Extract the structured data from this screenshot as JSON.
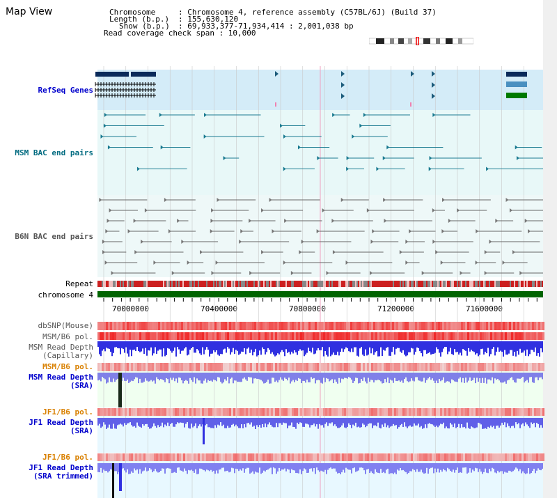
{
  "page": {
    "title": "Map View"
  },
  "header": {
    "chromosome_key": "Chromosome",
    "chromosome_val": ": Chromosome 4, reference assembly (C57BL/6J) (Build 37)",
    "length_key": "Length (b.p.)",
    "length_val": ": 155,630,120",
    "show_key": "Show (b.p.)",
    "show_val": ": 69,933,377-71,934,414 : 2,001,038 bp",
    "coverage_line": "Read coverage check span : 10,000"
  },
  "tracks": {
    "refseq": "RefSeq Genes",
    "msm_bac": "MSM BAC end pairs",
    "b6n_bac": "B6N BAC end pairs",
    "repeat": "Repeat",
    "chromosome": "chromosome 4",
    "dbsnp": "dbSNP(Mouse)",
    "msm_pol": "MSM/B6 pol.",
    "msm_depth_cap_1": "MSM Read Depth",
    "msm_depth_cap_2": "(Capillary)",
    "msm_pol_2": "MSM/B6 pol.",
    "msm_depth_sra_1": "MSM Read Depth",
    "msm_depth_sra_2": "(SRA)",
    "jf1_pol_1": "JF1/B6 pol.",
    "jf1_depth_sra_1": "JF1 Read Depth",
    "jf1_depth_sra_2": "(SRA)",
    "jf1_pol_2": "JF1/B6 pol.",
    "jf1_depth_trim_1": "JF1 Read Depth",
    "jf1_depth_trim_2": "(SRA trimmed)"
  },
  "axis": {
    "ticks": [
      "70000000",
      "70400000",
      "70800000",
      "71200000",
      "71600000"
    ]
  },
  "colors": {
    "refseq_bg": "#d4ecf8",
    "bac_bg": "#e8f8f8",
    "repeat_red": "#cc2020",
    "chrom_green": "#006400",
    "depth_blue": "#3030e0",
    "pol_red": "#f04040",
    "sra_bg": "#f0fff0",
    "teal": "#1a7a90"
  }
}
